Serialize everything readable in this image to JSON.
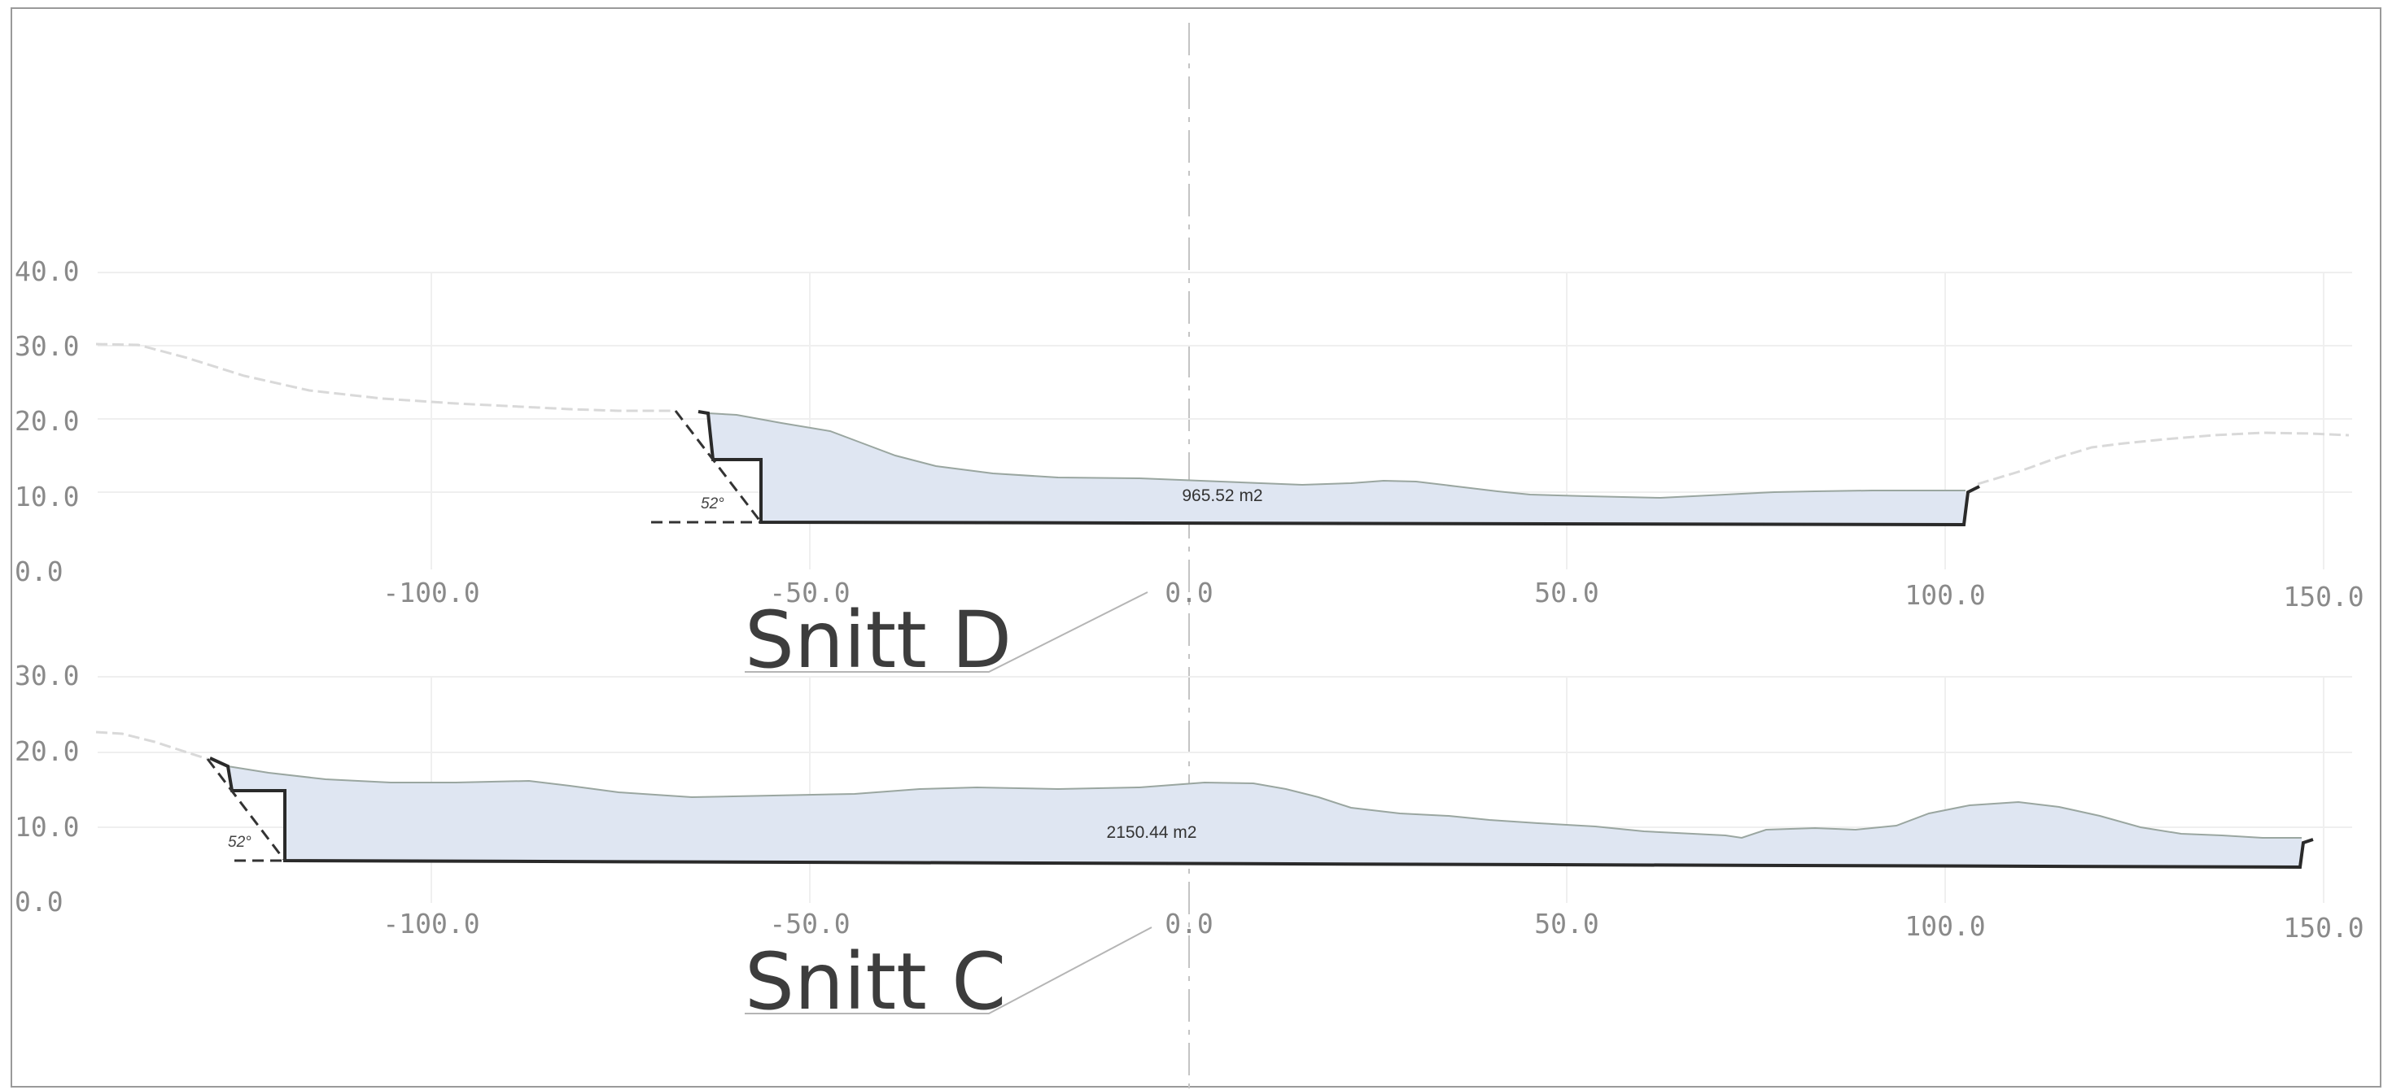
{
  "sections": [
    {
      "title": "Snitt D",
      "area_label": "965.52 m2",
      "angle_label": "52°",
      "y_ticks": [
        "40.0",
        "30.0",
        "20.0",
        "10.0",
        "0.0"
      ],
      "x_ticks": [
        "-100.0",
        "-50.0",
        "0.0",
        "50.0",
        "100.0",
        "150.0"
      ]
    },
    {
      "title": "Snitt C",
      "area_label": "2150.44 m2",
      "angle_label": "52°",
      "y_ticks": [
        "30.0",
        "20.0",
        "10.0",
        "0.0"
      ],
      "x_ticks": [
        "-100.0",
        "-50.0",
        "0.0",
        "50.0",
        "100.0",
        "150.0"
      ]
    }
  ],
  "colors": {
    "fill": "#dfe6f2",
    "outline": "#2a2a2a",
    "terrain": "#d8d8d8",
    "grid": "#efefef",
    "text": "#8a8a8a"
  }
}
